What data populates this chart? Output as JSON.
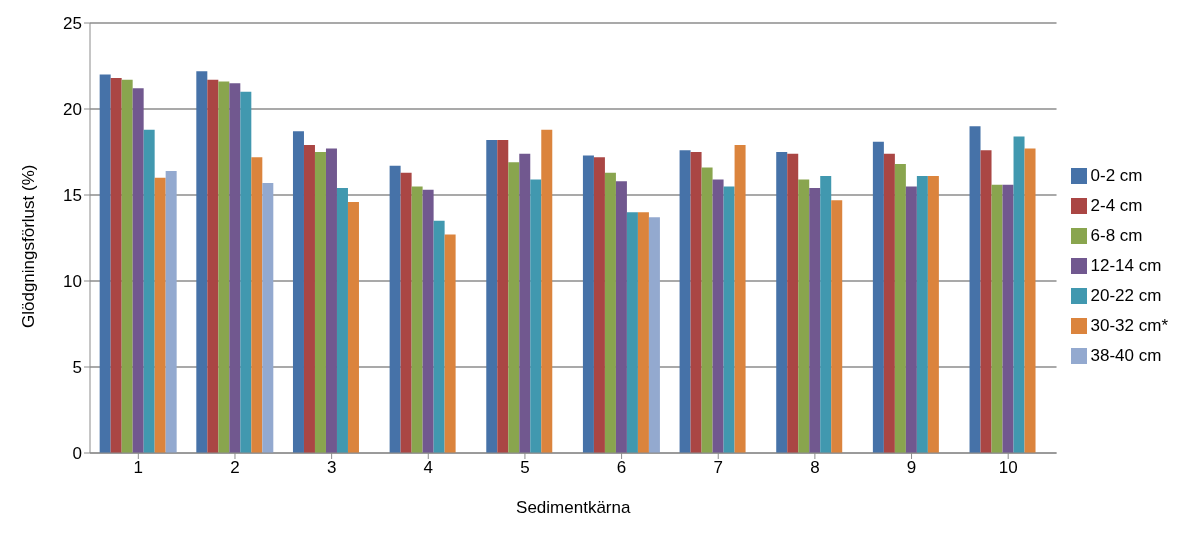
{
  "chart_data": {
    "type": "bar",
    "xlabel": "Sedimentkärna",
    "ylabel": "Glödgningsförlust (%)",
    "categories": [
      "1",
      "2",
      "3",
      "4",
      "5",
      "6",
      "7",
      "8",
      "9",
      "10"
    ],
    "series": [
      {
        "name": "0-2 cm",
        "color": "#4672a8",
        "values": [
          22.0,
          22.2,
          18.7,
          16.7,
          18.2,
          17.3,
          17.6,
          17.5,
          18.1,
          19.0
        ]
      },
      {
        "name": "2-4 cm",
        "color": "#aa4644",
        "values": [
          21.8,
          21.7,
          17.9,
          16.3,
          18.2,
          17.2,
          17.5,
          17.4,
          17.4,
          17.6
        ]
      },
      {
        "name": "6-8 cm",
        "color": "#89a54e",
        "values": [
          21.7,
          21.6,
          17.5,
          15.5,
          16.9,
          16.3,
          16.6,
          15.9,
          16.8,
          15.6
        ]
      },
      {
        "name": "12-14 cm",
        "color": "#71588f",
        "values": [
          21.2,
          21.5,
          17.7,
          15.3,
          17.4,
          15.8,
          15.9,
          15.4,
          15.5,
          15.6
        ]
      },
      {
        "name": "20-22 cm",
        "color": "#4198af",
        "values": [
          18.8,
          21.0,
          15.4,
          13.5,
          15.9,
          14.0,
          15.5,
          16.1,
          16.1,
          18.4
        ]
      },
      {
        "name": "30-32 cm*",
        "color": "#db843d",
        "values": [
          16.0,
          17.2,
          14.6,
          12.7,
          18.8,
          14.0,
          17.9,
          14.7,
          16.1,
          17.7
        ]
      },
      {
        "name": "38-40 cm",
        "color": "#93a9cf",
        "values": [
          16.4,
          15.7,
          null,
          null,
          null,
          13.7,
          null,
          null,
          null,
          null
        ]
      }
    ],
    "ylim": [
      0,
      25
    ],
    "yticks": [
      0,
      5,
      10,
      15,
      20,
      25
    ],
    "grid": "y",
    "legend": "right"
  }
}
